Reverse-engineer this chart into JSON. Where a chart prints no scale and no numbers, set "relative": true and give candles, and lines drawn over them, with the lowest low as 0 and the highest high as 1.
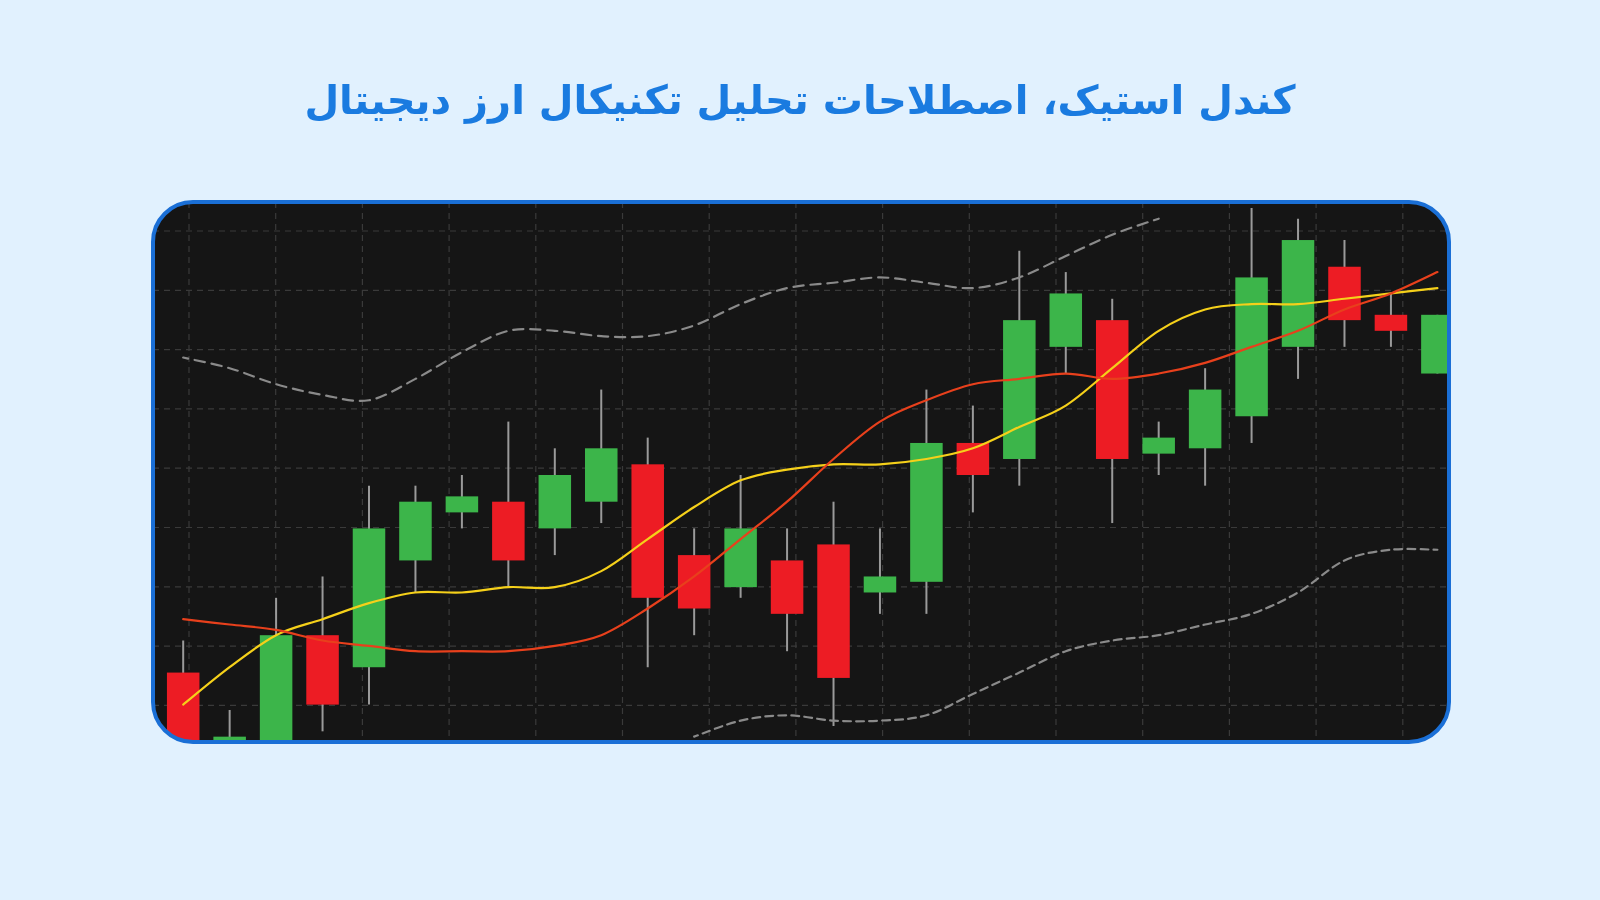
{
  "chart_data": {
    "type": "candlestick",
    "title": "کندل استیک، اصطلاحات تحلیل تکنیکال ارز دیجیتال",
    "relative": true,
    "grid": true,
    "categories": [
      null,
      null,
      null,
      null,
      null,
      null,
      null,
      null,
      null,
      null,
      null,
      null,
      null,
      null,
      null,
      null,
      null,
      null,
      null,
      null,
      null,
      null,
      null,
      null,
      null,
      null,
      null,
      null
    ],
    "colors": [
      "#ed1c24",
      "#3cb54a",
      "#3cb54a",
      "#ed1c24",
      "#3cb54a",
      "#3cb54a",
      "#3cb54a",
      "#ed1c24",
      "#3cb54a",
      "#3cb54a",
      "#ed1c24",
      "#ed1c24",
      "#3cb54a",
      "#ed1c24",
      "#ed1c24",
      "#3cb54a",
      "#3cb54a",
      "#ed1c24",
      "#3cb54a",
      "#3cb54a",
      "#ed1c24",
      "#3cb54a",
      "#3cb54a",
      "#3cb54a",
      "#3cb54a",
      "#ed1c24",
      "#ed1c24",
      "#3cb54a"
    ],
    "ohlc": [
      [
        0.13,
        0.19,
        0,
        0
      ],
      [
        0,
        0.06,
        0,
        0.01
      ],
      [
        0,
        0.27,
        0,
        0.2
      ],
      [
        0.2,
        0.31,
        0.02,
        0.07
      ],
      [
        0.14,
        0.48,
        0.07,
        0.4
      ],
      [
        0.34,
        0.48,
        0.28,
        0.45
      ],
      [
        0.43,
        0.5,
        0.4,
        0.46
      ],
      [
        0.45,
        0.6,
        0.29,
        0.34
      ],
      [
        0.4,
        0.55,
        0.35,
        0.5
      ],
      [
        0.45,
        0.66,
        0.41,
        0.55
      ],
      [
        0.52,
        0.57,
        0.14,
        0.27
      ],
      [
        0.35,
        0.4,
        0.2,
        0.25
      ],
      [
        0.29,
        0.5,
        0.27,
        0.4
      ],
      [
        0.34,
        0.4,
        0.17,
        0.24
      ],
      [
        0.37,
        0.45,
        0.03,
        0.12
      ],
      [
        0.28,
        0.4,
        0.24,
        0.31
      ],
      [
        0.3,
        0.66,
        0.24,
        0.56
      ],
      [
        0.56,
        0.63,
        0.43,
        0.5
      ],
      [
        0.53,
        0.92,
        0.48,
        0.79
      ],
      [
        0.74,
        0.88,
        0.69,
        0.84
      ],
      [
        0.79,
        0.83,
        0.41,
        0.53
      ],
      [
        0.54,
        0.6,
        0.5,
        0.57
      ],
      [
        0.55,
        0.7,
        0.48,
        0.66
      ],
      [
        0.61,
        1,
        0.56,
        0.87
      ],
      [
        0.74,
        0.98,
        0.68,
        0.94
      ],
      [
        0.89,
        0.94,
        0.74,
        0.79
      ],
      [
        0.8,
        0.84,
        0.74,
        0.77
      ],
      [
        0.69,
        0.8,
        0.69,
        0.8
      ]
    ],
    "series": [
      {
        "type": "line",
        "color": "#8a8a8a",
        "line_style": "dashed",
        "values": [
          0.72,
          0.7,
          0.67,
          0.65,
          0.64,
          0.68,
          0.73,
          0.77,
          0.77,
          0.76,
          0.76,
          0.78,
          0.82,
          0.85,
          0.86,
          0.87,
          0.86,
          0.85,
          0.87,
          0.91,
          0.95,
          0.98,
          null,
          null,
          null,
          null,
          null,
          null
        ]
      },
      {
        "type": "line",
        "color": "#8a8a8a",
        "line_style": "dashed",
        "values": [
          null,
          null,
          null,
          null,
          null,
          null,
          null,
          null,
          null,
          null,
          null,
          0.01,
          0.04,
          0.05,
          0.04,
          0.04,
          0.05,
          0.09,
          0.13,
          0.17,
          0.19,
          0.2,
          0.22,
          0.24,
          0.28,
          0.34,
          0.36,
          0.36
        ]
      },
      {
        "type": "line",
        "color": "#f5d01a",
        "line_style": "solid",
        "values": [
          0.07,
          0.14,
          0.2,
          0.23,
          0.26,
          0.28,
          0.28,
          0.29,
          0.29,
          0.32,
          0.38,
          0.44,
          0.49,
          0.51,
          0.52,
          0.52,
          0.53,
          0.55,
          0.59,
          0.63,
          0.7,
          0.77,
          0.81,
          0.82,
          0.82,
          0.83,
          0.84,
          0.85
        ]
      },
      {
        "type": "line",
        "color": "#e8401c",
        "line_style": "solid",
        "values": [
          0.23,
          0.22,
          0.21,
          0.19,
          0.18,
          0.17,
          0.17,
          0.17,
          0.18,
          0.2,
          0.25,
          0.31,
          0.38,
          0.45,
          0.53,
          0.6,
          0.64,
          0.67,
          0.68,
          0.69,
          0.68,
          0.69,
          0.71,
          0.74,
          0.77,
          0.81,
          0.84,
          0.88
        ]
      }
    ]
  }
}
